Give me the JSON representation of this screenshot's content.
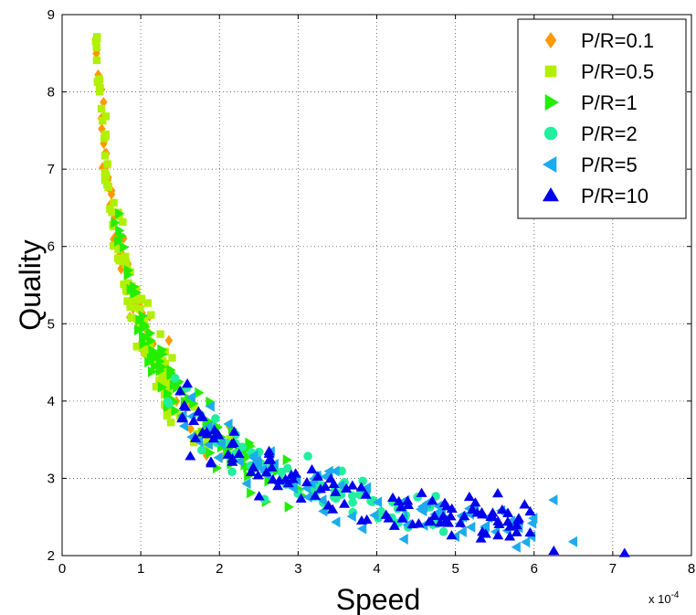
{
  "chart_data": {
    "type": "scatter",
    "title": "",
    "xlabel": "Speed",
    "ylabel": "Quality",
    "x_exponent_label": "x 10",
    "x_exponent_power": "-4",
    "xlim": [
      0,
      8
    ],
    "ylim": [
      2,
      9
    ],
    "x_ticks": [
      "0",
      "1",
      "2",
      "3",
      "4",
      "5",
      "6",
      "7",
      "8"
    ],
    "y_ticks": [
      "2",
      "3",
      "4",
      "5",
      "6",
      "7",
      "8",
      "9"
    ],
    "grid": true,
    "legend_position": "top-right",
    "x_unit_scale": 0.0001,
    "series": [
      {
        "name": "P/R=0.1",
        "marker": "diamond",
        "color": "#ff9900",
        "seed": 11,
        "clusters": [
          {
            "n": 60,
            "x": [
              0.35,
              1.35
            ]
          },
          {
            "n": 10,
            "x": [
              1.3,
              2.3
            ]
          }
        ]
      },
      {
        "name": "P/R=0.5",
        "marker": "square",
        "color": "#b0f000",
        "seed": 23,
        "clusters": [
          {
            "n": 110,
            "x": [
              0.4,
              1.4
            ]
          },
          {
            "n": 15,
            "x": [
              1.2,
              2.3
            ]
          }
        ]
      },
      {
        "name": "P/R=1",
        "marker": "triangle-right",
        "color": "#22ee00",
        "seed": 37,
        "clusters": [
          {
            "n": 80,
            "x": [
              0.6,
              2.4
            ]
          },
          {
            "n": 10,
            "x": [
              2.3,
              3.2
            ]
          }
        ]
      },
      {
        "name": "P/R=2",
        "marker": "circle",
        "color": "#22eea0",
        "seed": 41,
        "clusters": [
          {
            "n": 70,
            "x": [
              1.3,
              4.9
            ]
          }
        ]
      },
      {
        "name": "P/R=5",
        "marker": "triangle-left",
        "color": "#1eaaee",
        "seed": 53,
        "clusters": [
          {
            "n": 90,
            "x": [
              1.5,
              6.0
            ]
          }
        ],
        "extra_points": [
          [
            6.25,
            2.72
          ],
          [
            6.5,
            2.18
          ]
        ]
      },
      {
        "name": "P/R=10",
        "marker": "triangle-up",
        "color": "#0000ee",
        "seed": 67,
        "clusters": [
          {
            "n": 120,
            "x": [
              1.5,
              6.0
            ]
          }
        ],
        "extra_points": [
          [
            6.25,
            2.06
          ],
          [
            7.15,
            2.03
          ]
        ]
      }
    ]
  }
}
